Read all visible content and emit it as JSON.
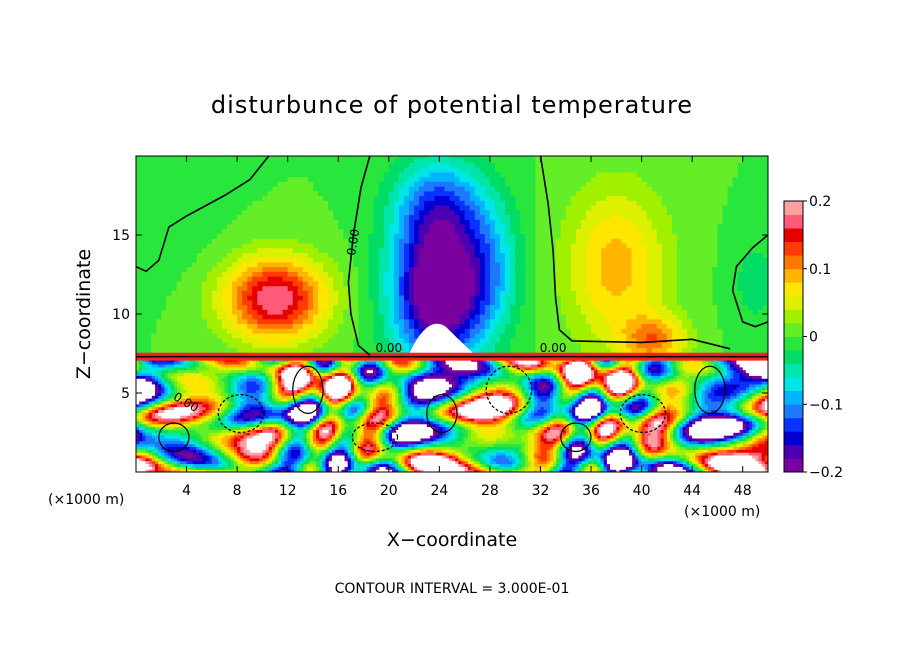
{
  "chart_data": {
    "type": "heatmap",
    "title": "disturbunce of potential temperature",
    "xlabel": "X−coordinate",
    "ylabel": "Z−coordinate",
    "x_unit_left": "(×1000 m)",
    "x_unit_right": "(×1000 m)",
    "xlim": [
      0,
      50
    ],
    "ylim": [
      0,
      20
    ],
    "x_ticks": [
      4,
      8,
      12,
      16,
      20,
      24,
      28,
      32,
      36,
      40,
      44,
      48
    ],
    "y_ticks": [
      5,
      10,
      15
    ],
    "colorbar": {
      "range": [
        -0.2,
        0.2
      ],
      "tick_values": [
        0.2,
        0.1,
        0,
        -0.1,
        -0.2
      ],
      "tick_labels": [
        "0.2",
        "0.1",
        "0",
        "−0.1",
        "−0.2"
      ],
      "colors": [
        "#7b00a0",
        "#4b00b4",
        "#0000d2",
        "#0a32ff",
        "#1e78ff",
        "#00b4ff",
        "#00e6e6",
        "#00e6aa",
        "#00dc64",
        "#28e63c",
        "#64ee28",
        "#a0f000",
        "#dcf000",
        "#ffe600",
        "#ffb400",
        "#ff7800",
        "#ff3c00",
        "#e60000",
        "#ff5a78",
        "#ffa0a0"
      ]
    },
    "contour_labels": [
      "0.00",
      "0.00",
      "0.00",
      "0.00"
    ],
    "note": "CONTOUR INTERVAL = 3.000E-01",
    "upper_blobs": [
      {
        "x": 11,
        "z": 11,
        "amp": 0.18,
        "sx": 4,
        "sz": 2.6
      },
      {
        "x": 24,
        "z": 11.5,
        "amp": -0.24,
        "sx": 3.6,
        "sz": 4.5
      },
      {
        "x": 24,
        "z": 17,
        "amp": -0.1,
        "sx": 3.6,
        "sz": 3
      },
      {
        "x": 28,
        "z": 13,
        "amp": -0.06,
        "sx": 2.5,
        "sz": 4
      },
      {
        "x": 38,
        "z": 13,
        "amp": 0.09,
        "sx": 4,
        "sz": 5
      },
      {
        "x": 41,
        "z": 8.4,
        "amp": 0.1,
        "sx": 2.5,
        "sz": 1.5
      },
      {
        "x": 49,
        "z": 12,
        "amp": -0.03,
        "sx": 2,
        "sz": 3
      },
      {
        "x": 2,
        "z": 17,
        "amp": -0.02,
        "sx": 4,
        "sz": 4
      }
    ]
  }
}
